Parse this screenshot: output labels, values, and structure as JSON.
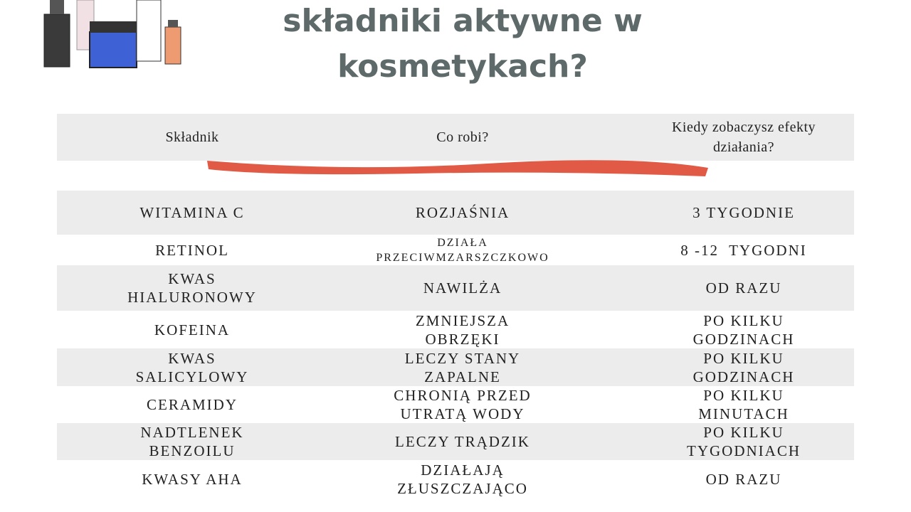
{
  "title": {
    "lines": [
      "składniki aktywne w",
      "kosmetykach?"
    ]
  },
  "table": {
    "headers": [
      [
        "Składnik"
      ],
      [
        "Co robi?"
      ],
      [
        "Kiedy zobaczysz efekty",
        "działania?"
      ]
    ],
    "rows": [
      [
        [
          "WITAMINA C"
        ],
        [
          "ROZJAŚNIA"
        ],
        [
          "3 TYGODNIE"
        ]
      ],
      [
        [
          "RETINOL"
        ],
        [
          "DZIAŁA",
          "PRZECIWMZARSZCZKOWO"
        ],
        [
          "8 -12  TYGODNI"
        ]
      ],
      [
        [
          "KWAS",
          "HIALURONOWY"
        ],
        [
          "NAWILŻA"
        ],
        [
          "OD RAZU"
        ]
      ],
      [
        [
          "KOFEINA"
        ],
        [
          "ZMNIEJSZA",
          "OBRZĘKI"
        ],
        [
          "PO KILKU",
          "GODZINACH"
        ]
      ],
      [
        [
          "KWAS",
          "SALICYLOWY"
        ],
        [
          "LECZY STANY",
          "ZAPALNE"
        ],
        [
          "PO KILKU",
          "GODZINACH"
        ]
      ],
      [
        [
          "CERAMIDY"
        ],
        [
          "CHRONIĄ PRZED",
          "UTRATĄ WODY"
        ],
        [
          "PO KILKU",
          "MINUTACH"
        ]
      ],
      [
        [
          "NADTLENEK",
          "BENZOILU"
        ],
        [
          "LECZY TRĄDZIK"
        ],
        [
          "PO KILKU",
          "TYGODNIACH"
        ]
      ],
      [
        [
          "KWASY AHA"
        ],
        [
          "DZIAŁAJĄ",
          "ZŁUSZCZAJĄCO"
        ],
        [
          "OD RAZU"
        ]
      ]
    ]
  }
}
